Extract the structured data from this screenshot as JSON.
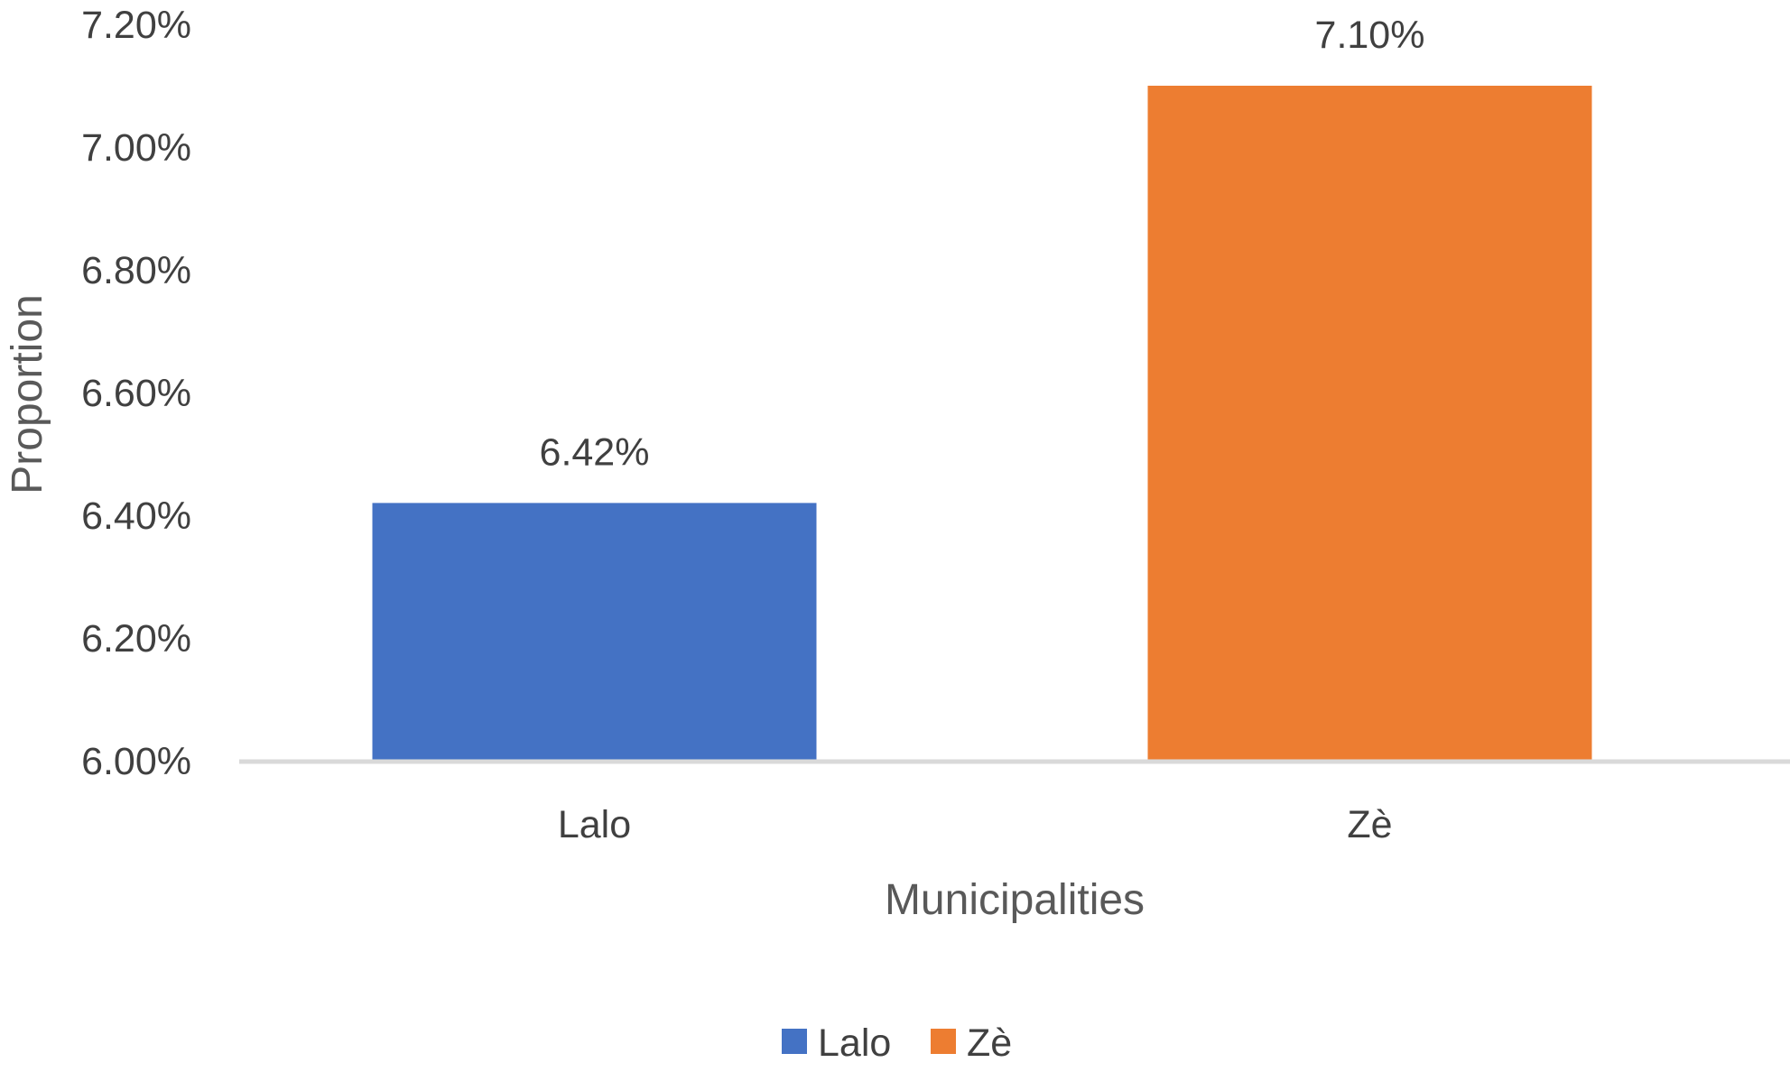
{
  "chart_data": {
    "type": "bar",
    "title": "",
    "categories": [
      "Lalo",
      "Zè"
    ],
    "values": [
      6.42,
      7.1
    ],
    "data_labels": [
      "6.42%",
      "7.10%"
    ],
    "colors": [
      "#4472C4",
      "#ED7D31"
    ],
    "xlabel": "Municipalities",
    "ylabel": "Proportion",
    "ylim": [
      6.0,
      7.2
    ],
    "yticks": [
      6.0,
      6.2,
      6.4,
      6.6,
      6.8,
      7.0,
      7.2
    ],
    "ytick_labels": [
      "6.00%",
      "6.20%",
      "6.40%",
      "6.60%",
      "6.80%",
      "7.00%",
      "7.20%"
    ],
    "grid": false,
    "legend": {
      "position": "bottom",
      "entries": [
        {
          "label": "Lalo",
          "color": "#4472C4"
        },
        {
          "label": "Zè",
          "color": "#ED7D31"
        }
      ]
    }
  }
}
